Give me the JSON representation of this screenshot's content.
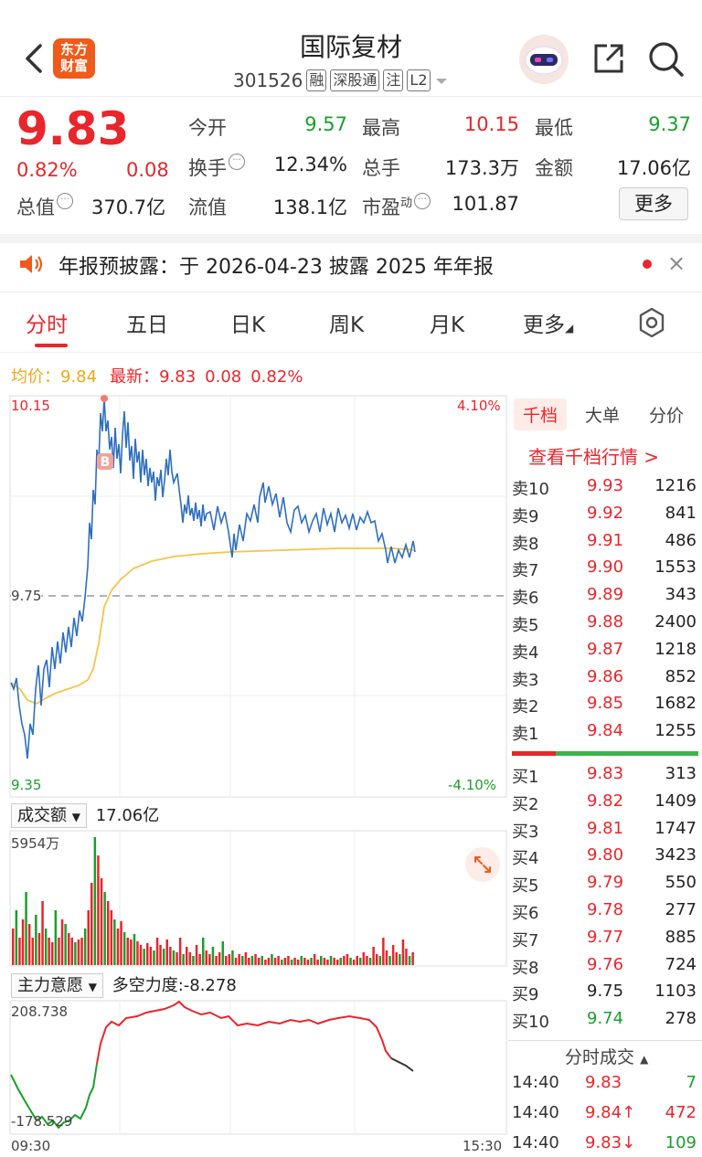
{
  "header": {
    "logo_line1": "东方",
    "logo_line2": "财富",
    "stock_name": "国际复材",
    "code": "301526",
    "tags": [
      "融",
      "深股通",
      "注",
      "L2"
    ]
  },
  "quote": {
    "price": "9.83",
    "change_pct": "0.82%",
    "change_abs": "0.08",
    "mktcap_label": "总值",
    "mktcap_value": "370.7亿",
    "fields": [
      {
        "label": "今开",
        "value": "9.57",
        "color": "#1a9f2b"
      },
      {
        "label": "最高",
        "value": "10.15",
        "color": "#e8262c"
      },
      {
        "label": "最低",
        "value": "9.37",
        "color": "#1a9f2b"
      },
      {
        "label": "换手",
        "value": "12.34%",
        "color": "#222"
      },
      {
        "label": "总手",
        "value": "173.3万",
        "color": "#222"
      },
      {
        "label": "金额",
        "value": "17.06亿",
        "color": "#222"
      },
      {
        "label": "流值",
        "value": "138.1亿",
        "color": "#222"
      },
      {
        "label": "市盈",
        "value": "101.87",
        "color": "#222"
      }
    ],
    "pe_sup": "动",
    "more_label": "更多"
  },
  "notice": {
    "text": "年报预披露：于 2026-04-23 披露 2025 年年报",
    "close": "×"
  },
  "tabs": [
    "分时",
    "五日",
    "日K",
    "周K",
    "月K",
    "更多"
  ],
  "intraday": {
    "avg_label": "均价：",
    "avg_value": "9.84",
    "latest_label": "最新：",
    "latest_value": "9.83",
    "latest_change": "0.08",
    "latest_pct": "0.82%",
    "high_label": "10.15",
    "low_label": "9.35",
    "mid_label": "9.75",
    "high_pct": "4.10%",
    "low_pct": "-4.10%",
    "marker": "B"
  },
  "volume": {
    "selector": "成交额",
    "total": "17.06亿",
    "max_label": "5954万"
  },
  "force": {
    "selector": "主力意愿",
    "metric": "多空力度:-8.278",
    "max_label": "208.738",
    "min_label": "-178.529",
    "time_start": "09:30",
    "time_end": "15:30"
  },
  "orderbook": {
    "tabs": [
      "千档",
      "大单",
      "分价"
    ],
    "link": "查看千档行情 >",
    "asks": [
      {
        "label": "卖10",
        "price": "9.93",
        "vol": "1216",
        "color": "#e8262c"
      },
      {
        "label": "卖9",
        "price": "9.92",
        "vol": "841",
        "color": "#e8262c"
      },
      {
        "label": "卖8",
        "price": "9.91",
        "vol": "486",
        "color": "#e8262c"
      },
      {
        "label": "卖7",
        "price": "9.90",
        "vol": "1553",
        "color": "#e8262c"
      },
      {
        "label": "卖6",
        "price": "9.89",
        "vol": "343",
        "color": "#e8262c"
      },
      {
        "label": "卖5",
        "price": "9.88",
        "vol": "2400",
        "color": "#e8262c"
      },
      {
        "label": "卖4",
        "price": "9.87",
        "vol": "1218",
        "color": "#e8262c"
      },
      {
        "label": "卖3",
        "price": "9.86",
        "vol": "852",
        "color": "#e8262c"
      },
      {
        "label": "卖2",
        "price": "9.85",
        "vol": "1682",
        "color": "#e8262c"
      },
      {
        "label": "卖1",
        "price": "9.84",
        "vol": "1255",
        "color": "#e8262c"
      }
    ],
    "bids": [
      {
        "label": "买1",
        "price": "9.83",
        "vol": "313",
        "color": "#e8262c"
      },
      {
        "label": "买2",
        "price": "9.82",
        "vol": "1409",
        "color": "#e8262c"
      },
      {
        "label": "买3",
        "price": "9.81",
        "vol": "1747",
        "color": "#e8262c"
      },
      {
        "label": "买4",
        "price": "9.80",
        "vol": "3423",
        "color": "#e8262c"
      },
      {
        "label": "买5",
        "price": "9.79",
        "vol": "550",
        "color": "#e8262c"
      },
      {
        "label": "买6",
        "price": "9.78",
        "vol": "277",
        "color": "#e8262c"
      },
      {
        "label": "买7",
        "price": "9.77",
        "vol": "885",
        "color": "#e8262c"
      },
      {
        "label": "买8",
        "price": "9.76",
        "vol": "724",
        "color": "#e8262c"
      },
      {
        "label": "买9",
        "price": "9.75",
        "vol": "1103",
        "color": "#222222"
      },
      {
        "label": "买10",
        "price": "9.74",
        "vol": "278",
        "color": "#1a9f2b"
      }
    ],
    "trades_title": "分时成交",
    "trades": [
      {
        "time": "14:40",
        "price": "9.83",
        "vol": "7",
        "pcolor": "#e8262c",
        "vcolor": "#1a9f2b"
      },
      {
        "time": "14:40",
        "price": "9.84↑",
        "vol": "472",
        "pcolor": "#e8262c",
        "vcolor": "#e8262c"
      },
      {
        "time": "14:40",
        "price": "9.83↓",
        "vol": "109",
        "pcolor": "#e8262c",
        "vcolor": "#1a9f2b"
      }
    ]
  },
  "colors": {
    "up": "#e8262c",
    "down": "#1a9f2b",
    "price_line": "#2f6fbf",
    "avg_line": "#f7c34a"
  }
}
